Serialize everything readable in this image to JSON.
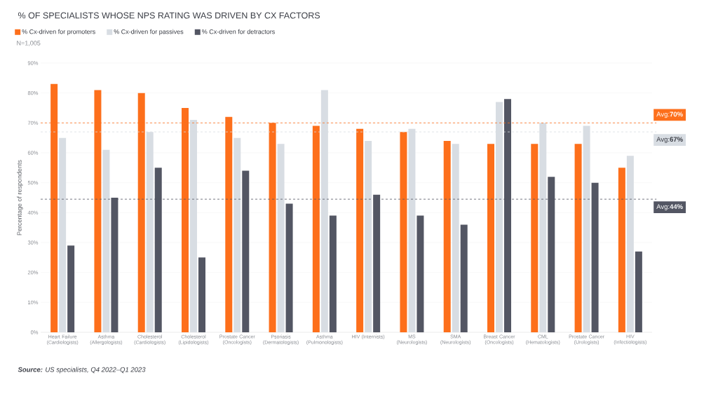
{
  "chart_data": {
    "type": "bar",
    "title": "% OF SPECIALISTS WHOSE NPS RATING WAS DRIVEN BY CX FACTORS",
    "ylabel": "Percentage of respondents",
    "categories": [
      "Heart Failure (Cardiologists)",
      "Asthma (Allergologists)",
      "Cholesterol (Cardiologists)",
      "Cholesterol (Lipidologists)",
      "Prostate Cancer (Oncologists)",
      "Psoriasis (Dermatologists)",
      "Asthma (Pulmonologists)",
      "HIV (Internists)",
      "MS (Neurologists)",
      "SMA (Neurologists)",
      "Breast Cancer (Oncologists)",
      "CML (Hematologists)",
      "Prostate Cancer (Urologists)",
      "HIV (Infectiologists)"
    ],
    "series": [
      {
        "name": "% Cx-driven for promoters",
        "color": "#fd6f1b",
        "values": [
          83,
          81,
          80,
          75,
          72,
          70,
          69,
          68,
          67,
          64,
          63,
          63,
          63,
          55
        ]
      },
      {
        "name": "% Cx-driven for passives",
        "color": "#d8dde3",
        "values": [
          65,
          61,
          67,
          71,
          65,
          63,
          81,
          64,
          68,
          63,
          77,
          70,
          69,
          59
        ]
      },
      {
        "name": "% Cx-driven for detractors",
        "color": "#535663",
        "values": [
          29,
          45,
          55,
          25,
          54,
          43,
          39,
          46,
          39,
          36,
          78,
          52,
          50,
          27
        ]
      }
    ],
    "ylim": [
      0,
      90
    ],
    "yticks": [
      {
        "value": 0,
        "label": "0%"
      },
      {
        "value": 10,
        "label": "10%"
      },
      {
        "value": 20,
        "label": "20%"
      },
      {
        "value": 30,
        "label": "30%"
      },
      {
        "value": 40,
        "label": "40%"
      },
      {
        "value": 50,
        "label": "50%"
      },
      {
        "value": 60,
        "label": "60%"
      },
      {
        "value": 70,
        "label": "70%"
      },
      {
        "value": 80,
        "label": "80%"
      },
      {
        "value": 90,
        "label": "90%"
      }
    ],
    "grid": "y",
    "legend": "top left",
    "ref_lines": [
      {
        "axis": "y",
        "value": 70,
        "label": "Avg:**70%**",
        "color": "#fd6f1b",
        "line_style": "dashed"
      },
      {
        "axis": "y",
        "value": 67,
        "label": "Avg:**67%**",
        "color": "#d8dde3",
        "line_style": "dashed"
      },
      {
        "axis": "y",
        "value": 44.5,
        "label": "Avg:**44%**",
        "color": "#535663",
        "line_style": "dashed"
      }
    ],
    "annotations": [
      "N=1,005",
      "**Source:** US specialists, Q4 2022–Q1 2023"
    ]
  }
}
